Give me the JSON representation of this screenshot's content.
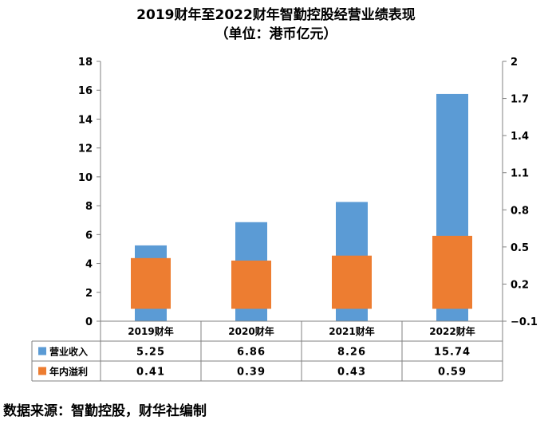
{
  "chart_data": {
    "type": "bar",
    "title": "2019财年至2022财年智勤控股经营业绩表现",
    "subtitle": "（单位：港币亿元）",
    "categories": [
      "2019财年",
      "2020财年",
      "2021财年",
      "2022财年"
    ],
    "series": [
      {
        "name": "营业收入",
        "values": [
          5.25,
          6.86,
          8.26,
          15.74
        ],
        "axis": "left",
        "color": "#5b9bd5"
      },
      {
        "name": "年内溢利",
        "values": [
          0.41,
          0.39,
          0.43,
          0.59
        ],
        "axis": "right",
        "color": "#ed7d31"
      }
    ],
    "left_axis": {
      "ylim": [
        0,
        18
      ],
      "ticks": [
        "0",
        "2",
        "4",
        "6",
        "8",
        "10",
        "12",
        "14",
        "16",
        "18"
      ]
    },
    "right_axis": {
      "ylim": [
        -0.1,
        2
      ],
      "ticks": [
        "−0.1",
        "0.2",
        "0.5",
        "0.8",
        "1.1",
        "1.4",
        "1.7",
        "2"
      ],
      "tick_values": [
        -0.1,
        0.2,
        0.5,
        0.8,
        1.1,
        1.4,
        1.7,
        2.0
      ],
      "bar_base": 0.0
    },
    "table": {
      "rows": [
        {
          "label": "营业收入",
          "cells": [
            "5.25",
            "6.86",
            "8.26",
            "15.74"
          ]
        },
        {
          "label": "年内溢利",
          "cells": [
            "0.41",
            "0.39",
            "0.43",
            "0.59"
          ]
        }
      ]
    },
    "grid": false,
    "legend": "data-table"
  },
  "source": "数据来源：智勤控股，财华社编制"
}
